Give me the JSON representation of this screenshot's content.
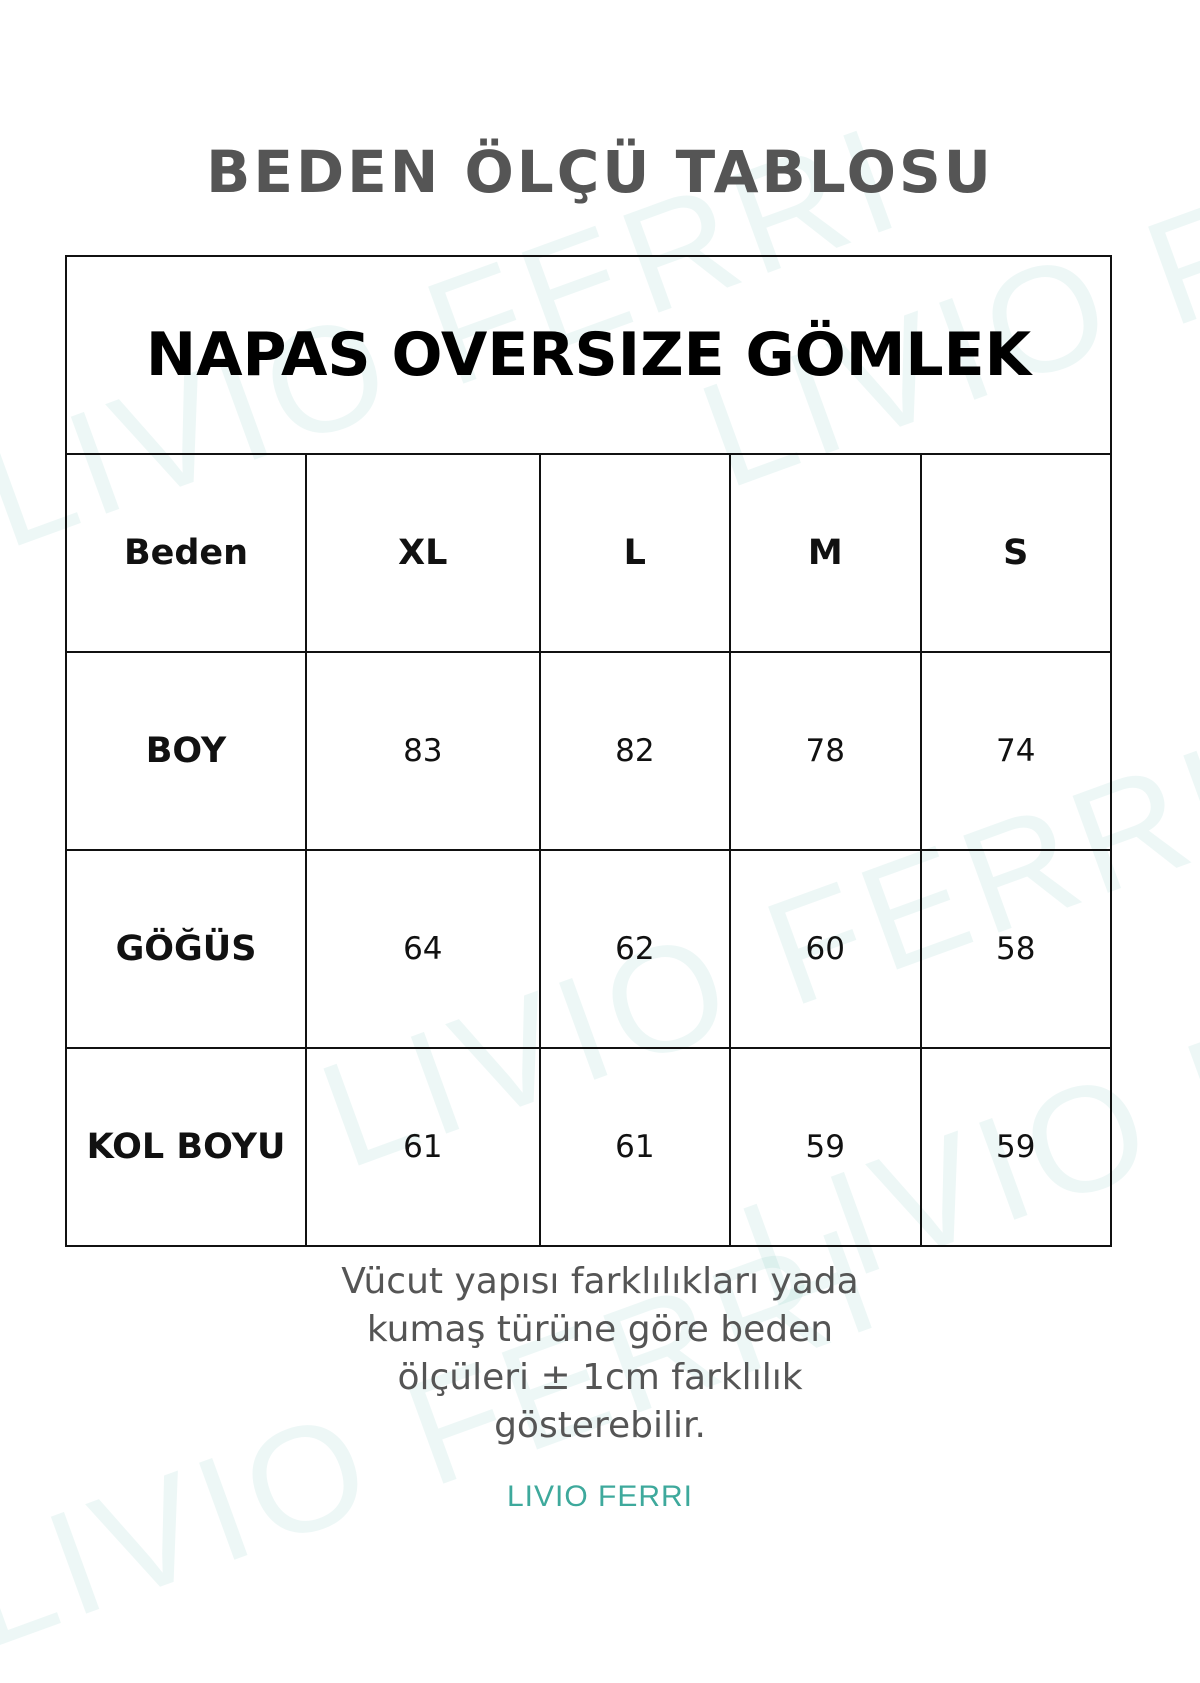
{
  "watermark": "LIVIO FERRI",
  "heading": "BEDEN ÖLÇÜ TABLOSU",
  "table": {
    "title": "NAPAS OVERSIZE GÖMLEK",
    "header": [
      "Beden",
      "XL",
      "L",
      "M",
      "S"
    ],
    "rows": [
      {
        "label": "BOY",
        "values": [
          "83",
          "82",
          "78",
          "74"
        ]
      },
      {
        "label": "GÖĞÜS",
        "values": [
          "64",
          "62",
          "60",
          "58"
        ]
      },
      {
        "label": "KOL BOYU",
        "values": [
          "61",
          "61",
          "59",
          "59"
        ]
      }
    ]
  },
  "note": "Vücut yapısı farklılıkları yada kumaş türüne göre beden ölçüleri  ± 1cm farklılık gösterebilir.",
  "logo": {
    "text": "LIVIO  FERRI",
    "color": "#3ea99c"
  }
}
